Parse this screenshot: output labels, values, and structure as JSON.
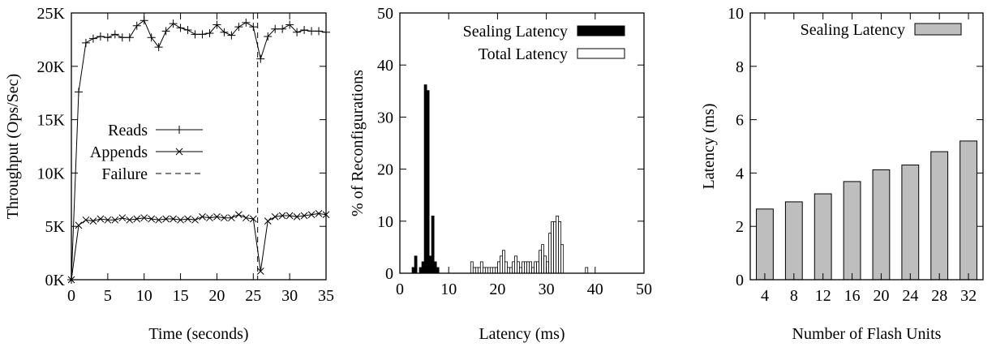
{
  "chart_data": [
    {
      "type": "line",
      "xlabel": "Time (seconds)",
      "ylabel": "Throughput (Ops/Sec)",
      "xlim": [
        0,
        35
      ],
      "ylim": [
        0,
        25000
      ],
      "xticks": [
        0,
        5,
        10,
        15,
        20,
        25,
        30,
        35
      ],
      "xtick_labels": [
        "0",
        "5",
        "10",
        "15",
        "20",
        "25",
        "30",
        "35"
      ],
      "yticks": [
        0,
        5000,
        10000,
        15000,
        20000,
        25000
      ],
      "ytick_labels": [
        "0K",
        "5K",
        "10K",
        "15K",
        "20K",
        "25K"
      ],
      "legend_position": "center-left",
      "series": [
        {
          "name": "Reads",
          "marker": "plus",
          "x": [
            0,
            1,
            2,
            3,
            4,
            5,
            6,
            7,
            8,
            9,
            10,
            11,
            12,
            13,
            14,
            15,
            16,
            17,
            18,
            19,
            20,
            21,
            22,
            23,
            24,
            25,
            26,
            27,
            28,
            29,
            30,
            31,
            32,
            33,
            34,
            35
          ],
          "values": [
            0,
            17600,
            22200,
            22600,
            22800,
            22700,
            23000,
            22700,
            22700,
            23800,
            24300,
            22700,
            21800,
            23300,
            24000,
            23600,
            23400,
            23000,
            23000,
            23100,
            23900,
            23200,
            22900,
            23700,
            24100,
            23700,
            20700,
            22800,
            23500,
            23500,
            23900,
            23200,
            23400,
            23300,
            23300,
            23200
          ]
        },
        {
          "name": "Appends",
          "marker": "x",
          "x": [
            0,
            1,
            2,
            3,
            4,
            5,
            6,
            7,
            8,
            9,
            10,
            11,
            12,
            13,
            14,
            15,
            16,
            17,
            18,
            19,
            20,
            21,
            22,
            23,
            24,
            25,
            26,
            27,
            28,
            29,
            30,
            31,
            32,
            33,
            34,
            35
          ],
          "values": [
            0,
            5100,
            5600,
            5500,
            5700,
            5600,
            5600,
            5800,
            5600,
            5700,
            5800,
            5700,
            5600,
            5700,
            5700,
            5600,
            5700,
            5600,
            5900,
            5800,
            5900,
            5800,
            5800,
            6100,
            5800,
            5700,
            800,
            5500,
            5900,
            6000,
            6000,
            5900,
            6000,
            6100,
            6200,
            6100
          ]
        },
        {
          "name": "Failure",
          "style": "dashed-vertical",
          "x": 25.6
        }
      ]
    },
    {
      "type": "bar",
      "xlabel": "Latency (ms)",
      "ylabel": "% of Reconfigurations",
      "xlim": [
        0,
        50
      ],
      "ylim": [
        0,
        50
      ],
      "xticks": [
        0,
        10,
        20,
        30,
        40,
        50
      ],
      "xtick_labels": [
        "0",
        "10",
        "20",
        "30",
        "40",
        "50"
      ],
      "yticks": [
        0,
        10,
        20,
        30,
        40,
        50
      ],
      "ytick_labels": [
        "0",
        "10",
        "20",
        "30",
        "40",
        "50"
      ],
      "bin_width": 0.5,
      "legend_position": "top-right",
      "series": [
        {
          "name": "Sealing Latency",
          "fill": "#000000",
          "x": [
            2.5,
            3.0,
            4.0,
            4.5,
            5.0,
            5.5,
            6.0,
            6.5,
            7.0,
            7.5
          ],
          "values": [
            1.1,
            3.3,
            1.1,
            2.2,
            36.2,
            35.1,
            3.3,
            11.0,
            2.2,
            1.1
          ]
        },
        {
          "name": "Total Latency",
          "fill": "#ffffff",
          "x": [
            14.5,
            15.0,
            15.5,
            16.0,
            16.5,
            17.0,
            17.5,
            18.0,
            18.5,
            19.0,
            19.5,
            20.0,
            20.5,
            21.0,
            21.5,
            22.0,
            22.5,
            23.0,
            23.5,
            24.0,
            24.5,
            25.0,
            25.5,
            26.0,
            26.5,
            27.0,
            27.5,
            28.0,
            28.5,
            29.0,
            29.5,
            30.0,
            30.5,
            31.0,
            31.5,
            32.0,
            32.5,
            33.0,
            38.0
          ],
          "values": [
            2.2,
            1.1,
            1.1,
            1.1,
            2.2,
            1.1,
            1.1,
            1.1,
            1.1,
            1.1,
            1.1,
            2.2,
            3.3,
            4.4,
            2.2,
            1.1,
            1.1,
            2.2,
            3.3,
            2.2,
            1.1,
            2.2,
            2.2,
            2.2,
            2.2,
            1.1,
            2.2,
            2.2,
            4.4,
            5.5,
            3.3,
            2.2,
            7.7,
            9.9,
            9.9,
            11.0,
            9.9,
            5.5,
            1.1
          ]
        }
      ]
    },
    {
      "type": "bar",
      "xlabel": "Number of Flash Units",
      "ylabel": "Latency (ms)",
      "categories": [
        "4",
        "8",
        "12",
        "16",
        "20",
        "24",
        "28",
        "32"
      ],
      "ylim": [
        0,
        10
      ],
      "yticks": [
        0,
        2,
        4,
        6,
        8,
        10
      ],
      "ytick_labels": [
        "0",
        "2",
        "4",
        "6",
        "8",
        "10"
      ],
      "legend_position": "top-center",
      "series": [
        {
          "name": "Sealing Latency",
          "fill": "#bebebe",
          "values": [
            2.65,
            2.92,
            3.22,
            3.68,
            4.12,
            4.3,
            4.8,
            5.2
          ]
        }
      ]
    }
  ]
}
